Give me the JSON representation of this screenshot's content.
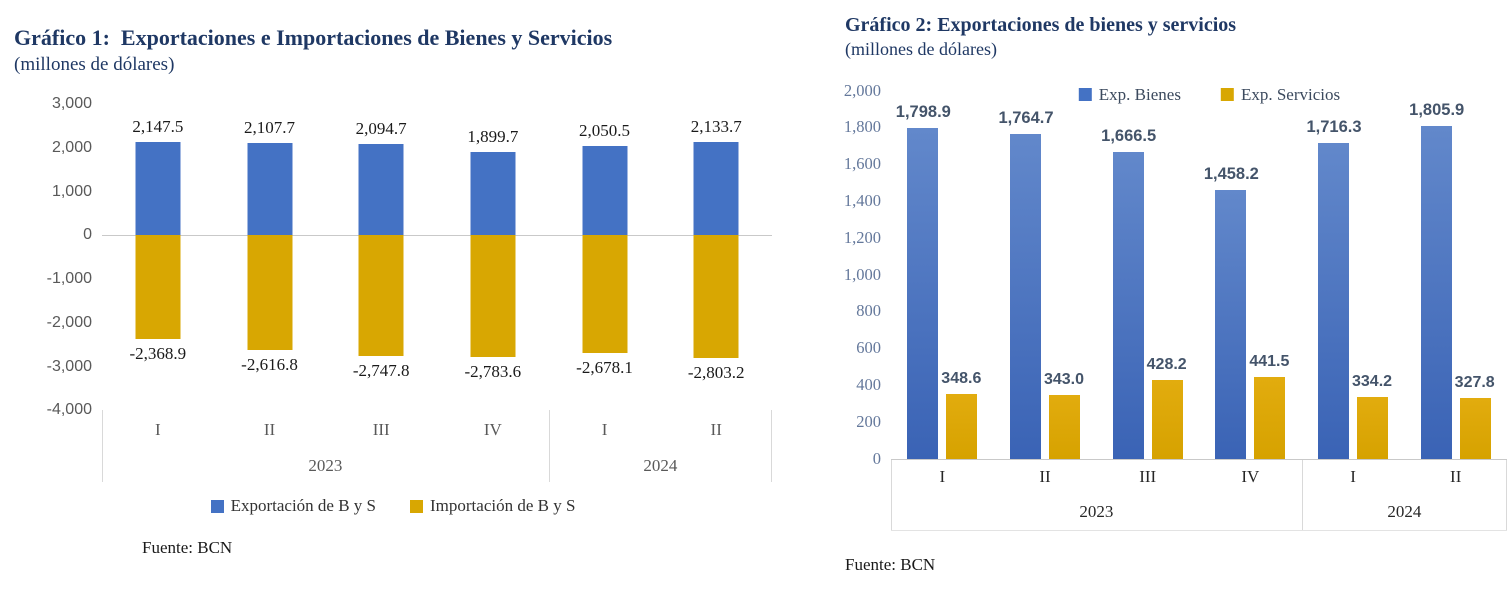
{
  "chart1": {
    "title": "Gráfico 1:  Exportaciones e Importaciones de Bienes y Servicios",
    "subtitle": "(millones de dólares)",
    "source": "Fuente: BCN"
  },
  "chart2": {
    "title": "Gráfico 2: Exportaciones de bienes y servicios",
    "subtitle": "(millones de dólares)",
    "source": "Fuente: BCN"
  },
  "chart_data": [
    {
      "id": "chart1",
      "type": "bar",
      "layout": "diverging",
      "title": "Gráfico 1:  Exportaciones e Importaciones de Bienes y Servicios",
      "subtitle": "(millones de dólares)",
      "categories": [
        "I",
        "II",
        "III",
        "IV",
        "I",
        "II"
      ],
      "year_groups": [
        {
          "label": "2023",
          "span": 4
        },
        {
          "label": "2024",
          "span": 2
        }
      ],
      "series": [
        {
          "name": "Exportación de B y S",
          "color": "#4472C4",
          "values": [
            2147.5,
            2107.7,
            2094.7,
            1899.7,
            2050.5,
            2133.7
          ]
        },
        {
          "name": "Importación de B y S",
          "color": "#D8A702",
          "values": [
            -2368.9,
            -2616.8,
            -2747.8,
            -2783.6,
            -2678.1,
            -2803.2
          ]
        }
      ],
      "data_labels": [
        [
          "2,147.5",
          "2,107.7",
          "2,094.7",
          "1,899.7",
          "2,050.5",
          "2,133.7"
        ],
        [
          "-2,368.9",
          "-2,616.8",
          "-2,747.8",
          "-2,783.6",
          "-2,678.1",
          "-2,803.2"
        ]
      ],
      "ylim": [
        -4000,
        3000
      ],
      "ytick_step": 1000,
      "yticks": [
        "3,000",
        "2,000",
        "1,000",
        "0",
        "-1,000",
        "-2,000",
        "-3,000",
        "-4,000"
      ],
      "grid": false,
      "zero_line": true,
      "legend_position": "bottom",
      "source": "Fuente: BCN"
    },
    {
      "id": "chart2",
      "type": "bar",
      "layout": "grouped",
      "title": "Gráfico 2: Exportaciones de bienes y servicios",
      "subtitle": "(millones de dólares)",
      "categories": [
        "I",
        "II",
        "III",
        "IV",
        "I",
        "II"
      ],
      "year_groups": [
        {
          "label": "2023",
          "span": 4
        },
        {
          "label": "2024",
          "span": 2
        }
      ],
      "series": [
        {
          "name": "Exp. Bienes",
          "color": "#4472C4",
          "gradient": [
            "#6288CB",
            "#3A63B5"
          ],
          "values": [
            1798.9,
            1764.7,
            1666.5,
            1458.2,
            1716.3,
            1805.9
          ]
        },
        {
          "name": "Exp. Servicios",
          "color": "#D8A702",
          "gradient": [
            "#E2AC0E",
            "#D6A200"
          ],
          "values": [
            348.6,
            343.0,
            428.2,
            441.5,
            334.2,
            327.8
          ]
        }
      ],
      "data_labels": [
        [
          "1,798.9",
          "1,764.7",
          "1,666.5",
          "1,458.2",
          "1,716.3",
          "1,805.9"
        ],
        [
          "348.6",
          "343.0",
          "428.2",
          "441.5",
          "334.2",
          "327.8"
        ]
      ],
      "ylim": [
        0,
        2000
      ],
      "ytick_step": 200,
      "yticks": [
        "2,000",
        "1,800",
        "1,600",
        "1,400",
        "1,200",
        "1,000",
        "800",
        "600",
        "400",
        "200",
        "0"
      ],
      "grid": false,
      "zero_line": false,
      "legend_position": "top-inside",
      "source": "Fuente: BCN"
    }
  ]
}
